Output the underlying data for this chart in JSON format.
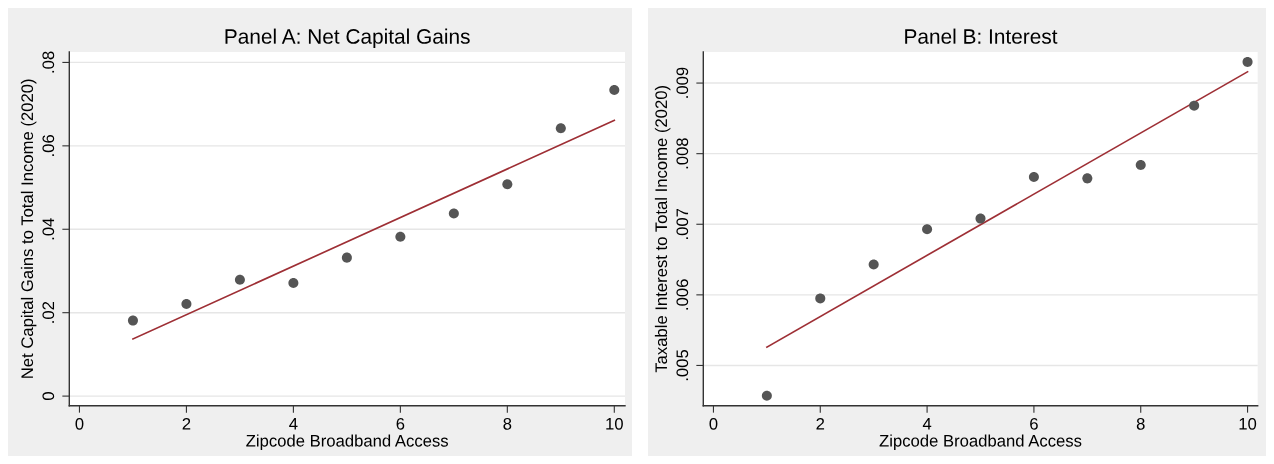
{
  "chart_data": [
    {
      "type": "scatter",
      "title": "Panel A: Net Capital Gains",
      "xlabel": "Zipcode Broadband Access",
      "ylabel": "Net Capital Gains to Total Income (2020)",
      "series": [
        {
          "marker": "circle",
          "color": "#555555",
          "x": [
            1,
            2,
            3,
            4,
            5,
            6,
            7,
            8,
            9,
            10
          ],
          "values": [
            0.0181,
            0.0221,
            0.0279,
            0.0271,
            0.0332,
            0.0382,
            0.0438,
            0.0508,
            0.0642,
            0.0734
          ]
        },
        {
          "type": "line",
          "line_style": "solid",
          "color": "#9e2f35",
          "x": [
            1,
            10
          ],
          "values": [
            0.0137,
            0.0661
          ]
        }
      ],
      "xlim": [
        -0.19,
        10.2
      ],
      "xticks": [
        0,
        2,
        4,
        6,
        8,
        10
      ],
      "ylim": [
        -0.0023,
        0.0825
      ],
      "yticks": [
        0,
        {
          "value": 0.02,
          "label": ".02"
        },
        {
          "value": 0.04,
          "label": ".04"
        },
        {
          "value": 0.06,
          "label": ".06"
        },
        {
          "value": 0.08,
          "label": ".08"
        }
      ],
      "grid": "y"
    },
    {
      "type": "scatter",
      "title": "Panel B: Interest",
      "xlabel": "Zipcode Broadband Access",
      "ylabel": "Taxable Interest to Total Income (2020)",
      "series": [
        {
          "marker": "circle",
          "color": "#555555",
          "x": [
            1,
            2,
            3,
            4,
            5,
            6,
            7,
            8,
            9,
            10
          ],
          "values": [
            0.00457,
            0.00595,
            0.00643,
            0.00693,
            0.00708,
            0.00767,
            0.00765,
            0.00784,
            0.00868,
            0.0093
          ]
        },
        {
          "type": "line",
          "line_style": "solid",
          "color": "#9e2f35",
          "x": [
            1,
            10
          ],
          "values": [
            0.00526,
            0.00916
          ]
        }
      ],
      "xlim": [
        -0.19,
        10.19
      ],
      "xticks": [
        0,
        2,
        4,
        6,
        8,
        10
      ],
      "ylim": [
        0.00443,
        0.00944
      ],
      "yticks": [
        {
          "value": 0.005,
          "label": ".005"
        },
        {
          "value": 0.006,
          "label": ".006"
        },
        {
          "value": 0.007,
          "label": ".007"
        },
        {
          "value": 0.008,
          "label": ".008"
        },
        {
          "value": 0.009,
          "label": ".009"
        }
      ],
      "grid": "y"
    }
  ]
}
